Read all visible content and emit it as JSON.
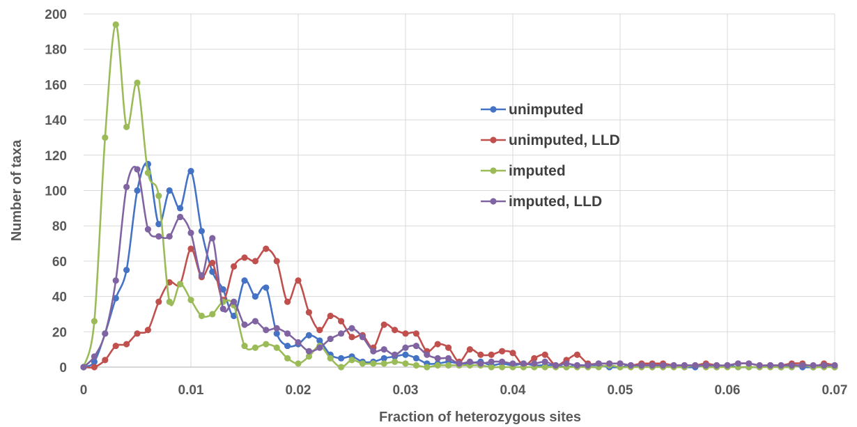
{
  "chart_data": {
    "type": "line",
    "title": "",
    "xlabel": "Fraction of heterozygous sites",
    "ylabel": "Number of taxa",
    "xlim": [
      0,
      0.07
    ],
    "ylim": [
      0,
      200
    ],
    "x_ticks": [
      "0",
      "0.01",
      "0.02",
      "0.03",
      "0.04",
      "0.05",
      "0.06",
      "0.07"
    ],
    "y_ticks": [
      "0",
      "20",
      "40",
      "60",
      "80",
      "100",
      "120",
      "140",
      "160",
      "180",
      "200"
    ],
    "grid": true,
    "legend_position": "right-center",
    "x": [
      0,
      0.001,
      0.002,
      0.003,
      0.004,
      0.005,
      0.006,
      0.007,
      0.008,
      0.009,
      0.01,
      0.011,
      0.012,
      0.013,
      0.014,
      0.015,
      0.016,
      0.017,
      0.018,
      0.019,
      0.02,
      0.021,
      0.022,
      0.023,
      0.024,
      0.025,
      0.026,
      0.027,
      0.028,
      0.029,
      0.03,
      0.031,
      0.032,
      0.033,
      0.034,
      0.035,
      0.036,
      0.037,
      0.038,
      0.039,
      0.04,
      0.041,
      0.042,
      0.043,
      0.044,
      0.045,
      0.046,
      0.047,
      0.048,
      0.049,
      0.05,
      0.051,
      0.052,
      0.053,
      0.054,
      0.055,
      0.056,
      0.057,
      0.058,
      0.059,
      0.06,
      0.061,
      0.062,
      0.063,
      0.064,
      0.065,
      0.066,
      0.067,
      0.068,
      0.069,
      0.07
    ],
    "series": [
      {
        "name": "unimputed",
        "color": "#4472c4",
        "values": [
          0,
          3,
          19,
          39,
          55,
          100,
          115,
          81,
          100,
          90,
          111,
          77,
          54,
          44,
          29,
          49,
          40,
          45,
          19,
          12,
          13,
          18,
          15,
          7,
          5,
          6,
          3,
          3,
          5,
          6,
          7,
          5,
          2,
          2,
          3,
          2,
          2,
          3,
          1,
          2,
          1,
          2,
          1,
          1,
          1,
          0,
          1,
          1,
          1,
          0,
          0,
          1,
          1,
          1,
          1,
          1,
          0,
          0,
          1,
          0,
          1,
          0,
          0,
          0,
          1,
          0,
          1,
          0,
          0,
          1,
          0
        ]
      },
      {
        "name": "unimputed, LLD",
        "color": "#c0504d",
        "values": [
          0,
          0,
          4,
          12,
          13,
          19,
          21,
          37,
          48,
          47,
          67,
          51,
          59,
          38,
          57,
          62,
          60,
          67,
          60,
          37,
          49,
          31,
          21,
          29,
          26,
          17,
          18,
          11,
          24,
          21,
          19,
          19,
          9,
          13,
          11,
          3,
          10,
          7,
          7,
          9,
          8,
          1,
          5,
          7,
          1,
          4,
          7,
          2,
          2,
          2,
          2,
          1,
          2,
          2,
          2,
          1,
          1,
          1,
          2,
          1,
          1,
          2,
          2,
          1,
          1,
          1,
          2,
          2,
          0,
          2,
          1
        ]
      },
      {
        "name": "imputed",
        "color": "#9bbb59",
        "values": [
          0,
          26,
          130,
          194,
          136,
          161,
          110,
          97,
          37,
          47,
          38,
          29,
          30,
          37,
          35,
          12,
          11,
          13,
          11,
          5,
          2,
          6,
          12,
          5,
          0,
          4,
          2,
          2,
          2,
          3,
          2,
          1,
          0,
          1,
          1,
          1,
          1,
          1,
          0,
          0,
          0,
          0,
          0,
          0,
          0,
          0,
          0,
          0,
          0,
          1,
          0,
          0,
          0,
          0,
          0,
          0,
          0,
          1,
          0,
          0,
          0,
          0,
          0,
          0,
          0,
          0,
          0,
          1,
          0,
          0,
          0
        ]
      },
      {
        "name": "imputed, LLD",
        "color": "#8064a2",
        "values": [
          0,
          6,
          19,
          49,
          102,
          112,
          78,
          74,
          74,
          85,
          76,
          52,
          73,
          33,
          37,
          24,
          26,
          21,
          22,
          19,
          14,
          9,
          11,
          16,
          19,
          22,
          17,
          9,
          10,
          7,
          11,
          12,
          7,
          5,
          5,
          2,
          3,
          2,
          3,
          3,
          2,
          2,
          2,
          3,
          1,
          2,
          1,
          1,
          2,
          2,
          2,
          1,
          1,
          1,
          1,
          1,
          1,
          1,
          1,
          1,
          1,
          2,
          2,
          1,
          1,
          1,
          1,
          1,
          1,
          1,
          1
        ]
      }
    ]
  }
}
